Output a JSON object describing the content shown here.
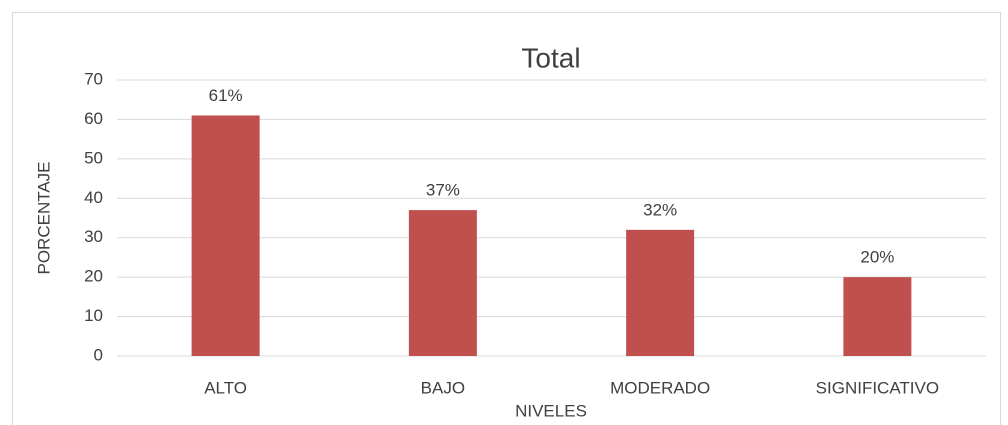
{
  "chart_data": {
    "type": "bar",
    "title": "Total",
    "x_label": "NIVELES",
    "y_label": "PORCENTAJE",
    "categories": [
      "ALTO",
      "BAJO",
      "MODERADO",
      "SIGNIFICATIVO"
    ],
    "values": [
      61,
      37,
      32,
      20
    ],
    "value_labels": [
      "61%",
      "37%",
      "32%",
      "20%"
    ],
    "color": "#c0504d",
    "ylim": [
      0,
      70
    ],
    "yticks": [
      0,
      10,
      20,
      30,
      40,
      50,
      60,
      70
    ],
    "grid": true
  }
}
